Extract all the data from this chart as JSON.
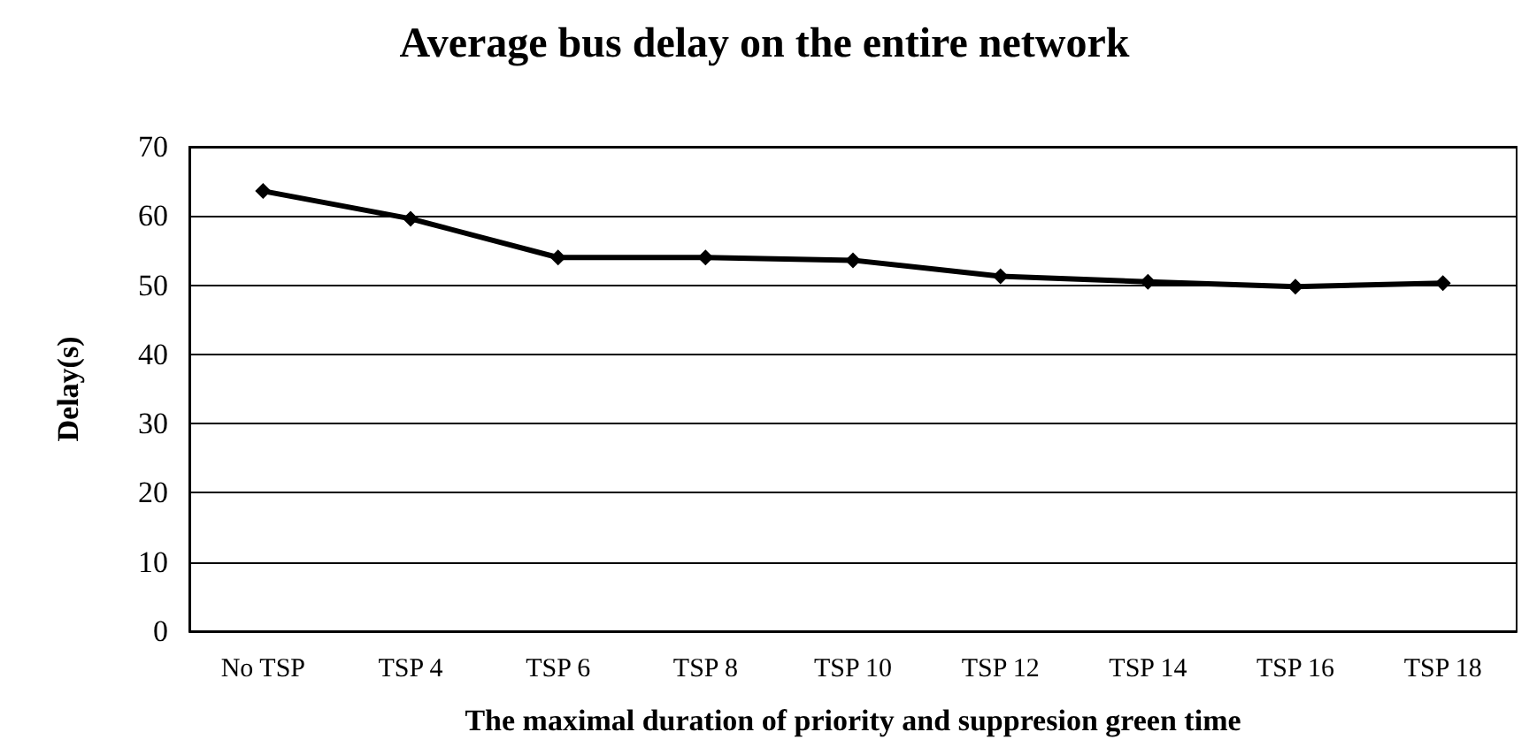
{
  "chart_data": {
    "type": "line",
    "title": "Average bus delay on the entire network",
    "xlabel": "The maximal duration of priority and suppresion green time",
    "ylabel": "Delay(s)",
    "categories": [
      "No TSP",
      "TSP 4",
      "TSP 6",
      "TSP 8",
      "TSP 10",
      "TSP 12",
      "TSP 14",
      "TSP 16",
      "TSP 18"
    ],
    "series": [
      {
        "color": "#000000",
        "values": [
          63.6,
          59.6,
          54.0,
          54.0,
          53.6,
          51.3,
          50.5,
          49.8,
          50.3
        ]
      }
    ],
    "ylim": [
      0,
      70
    ],
    "yticks": [
      0,
      10,
      20,
      30,
      40,
      50,
      60,
      70
    ],
    "grid": "y",
    "marker": "diamond",
    "line_style": "solid"
  }
}
